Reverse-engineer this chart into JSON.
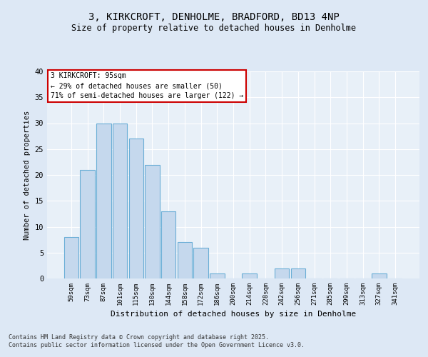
{
  "title1": "3, KIRKCROFT, DENHOLME, BRADFORD, BD13 4NP",
  "title2": "Size of property relative to detached houses in Denholme",
  "xlabel": "Distribution of detached houses by size in Denholme",
  "ylabel": "Number of detached properties",
  "categories": [
    "59sqm",
    "73sqm",
    "87sqm",
    "101sqm",
    "115sqm",
    "130sqm",
    "144sqm",
    "158sqm",
    "172sqm",
    "186sqm",
    "200sqm",
    "214sqm",
    "228sqm",
    "242sqm",
    "256sqm",
    "271sqm",
    "285sqm",
    "299sqm",
    "313sqm",
    "327sqm",
    "341sqm"
  ],
  "values": [
    8,
    21,
    30,
    30,
    27,
    22,
    13,
    7,
    6,
    1,
    0,
    1,
    0,
    2,
    2,
    0,
    0,
    0,
    0,
    1,
    0
  ],
  "bar_color": "#c5d8ed",
  "bar_edge_color": "#6aaed6",
  "annotation_line1": "3 KIRKCROFT: 95sqm",
  "annotation_line2": "← 29% of detached houses are smaller (50)",
  "annotation_line3": "71% of semi-detached houses are larger (122) →",
  "annotation_box_color": "#ffffff",
  "annotation_box_edge": "#cc0000",
  "ylim": [
    0,
    40
  ],
  "yticks": [
    0,
    5,
    10,
    15,
    20,
    25,
    30,
    35,
    40
  ],
  "footnote1": "Contains HM Land Registry data © Crown copyright and database right 2025.",
  "footnote2": "Contains public sector information licensed under the Open Government Licence v3.0.",
  "bg_color": "#dde8f5",
  "plot_bg_color": "#e8f0f8"
}
